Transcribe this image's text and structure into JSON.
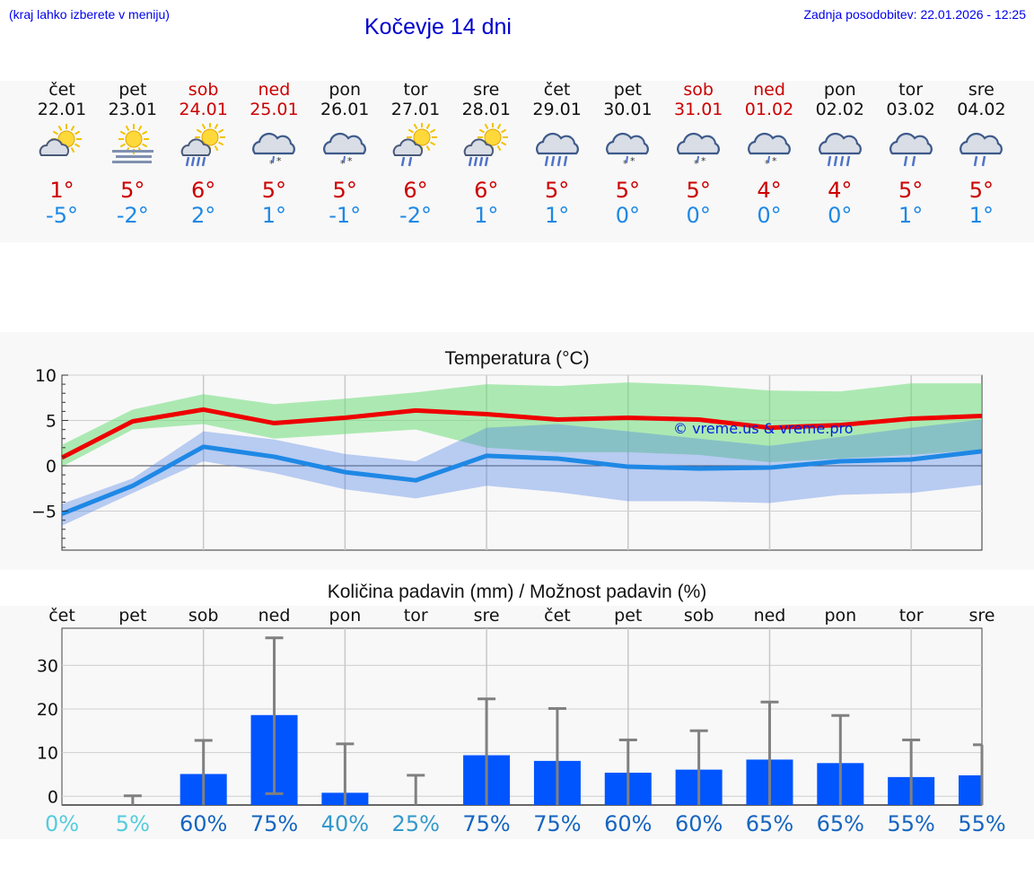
{
  "header": {
    "hint": "(kraj lahko izberete v meniju)",
    "title": "Kočevje 14 dni",
    "updated": "Zadnja posodobitev: 22.01.2026 - 12:25"
  },
  "colors": {
    "max": "#cc0000",
    "min": "#1e88e5",
    "weekend": "#cc0000",
    "bar": "#0055ff",
    "link": "#0000cc"
  },
  "days": [
    {
      "name": "čet",
      "date": "22.01",
      "weekend": false,
      "icon": "partly-cloudy-sun-icon",
      "max": "1°",
      "min": "-5°"
    },
    {
      "name": "pet",
      "date": "23.01",
      "weekend": false,
      "icon": "sun-fog-icon",
      "max": "5°",
      "min": "-2°"
    },
    {
      "name": "sob",
      "date": "24.01",
      "weekend": true,
      "icon": "sun-rain-icon",
      "max": "6°",
      "min": "2°"
    },
    {
      "name": "ned",
      "date": "25.01",
      "weekend": true,
      "icon": "cloud-sleet-icon",
      "max": "5°",
      "min": "1°"
    },
    {
      "name": "pon",
      "date": "26.01",
      "weekend": false,
      "icon": "cloud-sleet-icon",
      "max": "5°",
      "min": "-1°"
    },
    {
      "name": "tor",
      "date": "27.01",
      "weekend": false,
      "icon": "sun-showers-icon",
      "max": "6°",
      "min": "-2°"
    },
    {
      "name": "sre",
      "date": "28.01",
      "weekend": false,
      "icon": "sun-rain-icon",
      "max": "6°",
      "min": "1°"
    },
    {
      "name": "čet",
      "date": "29.01",
      "weekend": false,
      "icon": "cloud-rain-icon",
      "max": "5°",
      "min": "1°"
    },
    {
      "name": "pet",
      "date": "30.01",
      "weekend": false,
      "icon": "cloud-sleet-icon",
      "max": "5°",
      "min": "0°"
    },
    {
      "name": "sob",
      "date": "31.01",
      "weekend": true,
      "icon": "cloud-sleet-icon",
      "max": "5°",
      "min": "0°"
    },
    {
      "name": "ned",
      "date": "01.02",
      "weekend": true,
      "icon": "cloud-sleet-icon",
      "max": "4°",
      "min": "0°"
    },
    {
      "name": "pon",
      "date": "02.02",
      "weekend": false,
      "icon": "cloud-rain-icon",
      "max": "4°",
      "min": "0°"
    },
    {
      "name": "tor",
      "date": "03.02",
      "weekend": false,
      "icon": "cloud-showers-icon",
      "max": "5°",
      "min": "1°"
    },
    {
      "name": "sre",
      "date": "04.02",
      "weekend": false,
      "icon": "cloud-showers-icon",
      "max": "5°",
      "min": "1°"
    }
  ],
  "chart_data": [
    {
      "type": "line",
      "title": "Temperatura (°C)",
      "ylim": [
        -9.3,
        10
      ],
      "yticks": [
        "10",
        "5",
        "0",
        "−5"
      ],
      "ytick_values": [
        10,
        5,
        0,
        -5
      ],
      "watermark": "© vreme.us & vreme.pro",
      "x": [
        0,
        1,
        2,
        3,
        4,
        5,
        6,
        7,
        8,
        9,
        10,
        11,
        12,
        13
      ],
      "series": [
        {
          "name": "max",
          "color": "#ee0000",
          "values": [
            0.9,
            4.9,
            6.2,
            4.7,
            5.3,
            6.1,
            5.7,
            5.1,
            5.3,
            5.1,
            4.2,
            4.5,
            5.2,
            5.5
          ]
        },
        {
          "name": "max_range_low",
          "values": [
            -0.1,
            4.0,
            4.6,
            3.0,
            3.5,
            4.0,
            2.0,
            1.5,
            1.5,
            1.2,
            0.4,
            0.8,
            1.2,
            1.8
          ]
        },
        {
          "name": "max_range_high",
          "values": [
            2.3,
            6.2,
            7.9,
            6.8,
            7.4,
            8.1,
            9.0,
            8.8,
            9.2,
            8.9,
            8.3,
            8.2,
            9.1,
            9.1
          ]
        },
        {
          "name": "min",
          "color": "#1e88e5",
          "values": [
            -5.3,
            -2.2,
            2.1,
            1.0,
            -0.7,
            -1.6,
            1.1,
            0.8,
            -0.1,
            -0.3,
            -0.2,
            0.5,
            0.7,
            1.6
          ]
        },
        {
          "name": "min_range_low",
          "values": [
            -6.6,
            -3.0,
            0.5,
            -0.8,
            -2.6,
            -3.6,
            -2.2,
            -2.9,
            -3.9,
            -3.9,
            -4.1,
            -3.2,
            -3.0,
            -2.1
          ]
        },
        {
          "name": "min_range_high",
          "values": [
            -4.2,
            -1.4,
            3.8,
            2.9,
            1.3,
            0.5,
            4.2,
            4.6,
            3.8,
            3.0,
            2.2,
            3.2,
            4.2,
            5.1
          ]
        }
      ]
    },
    {
      "type": "bar",
      "title": "Količina padavin (mm) / Možnost padavin (%)",
      "categories": [
        "čet",
        "pet",
        "sob",
        "ned",
        "pon",
        "tor",
        "sre",
        "čet",
        "pet",
        "sob",
        "ned",
        "pon",
        "tor",
        "sre"
      ],
      "ylim": [
        -2,
        38.5
      ],
      "yticks": [
        "30",
        "20",
        "10",
        "0"
      ],
      "ytick_values": [
        30,
        20,
        10,
        0
      ],
      "values": [
        0,
        0,
        5.1,
        18.6,
        0.8,
        0,
        9.4,
        8.1,
        5.4,
        6.1,
        8.4,
        7.6,
        4.4,
        4.8
      ],
      "error_high": [
        0,
        0.1,
        12.8,
        36.3,
        12.0,
        4.8,
        22.3,
        20.1,
        12.9,
        15.0,
        21.6,
        18.5,
        12.9,
        11.8
      ],
      "error_low": [
        0,
        0,
        0,
        0.6,
        0,
        0,
        0,
        0,
        0,
        0,
        0,
        0,
        0,
        0
      ],
      "chance": [
        "0%",
        "5%",
        "60%",
        "75%",
        "40%",
        "25%",
        "75%",
        "75%",
        "60%",
        "60%",
        "65%",
        "65%",
        "55%",
        "55%"
      ],
      "chance_colors": [
        "#55ccdd",
        "#55ccdd",
        "#1565c0",
        "#1565c0",
        "#3399cc",
        "#3399cc",
        "#1565c0",
        "#1565c0",
        "#1565c0",
        "#1565c0",
        "#1565c0",
        "#1565c0",
        "#1565c0",
        "#1565c0"
      ]
    }
  ]
}
